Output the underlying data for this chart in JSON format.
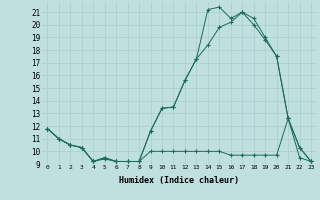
{
  "xlabel": "Humidex (Indice chaleur)",
  "bg_color": "#c0e0e0",
  "line_color": "#1a6b5a",
  "xlim": [
    -0.5,
    23.5
  ],
  "ylim": [
    9,
    21.8
  ],
  "xticks": [
    0,
    1,
    2,
    3,
    4,
    5,
    6,
    7,
    8,
    9,
    10,
    11,
    12,
    13,
    14,
    15,
    16,
    17,
    18,
    19,
    20,
    21,
    22,
    23
  ],
  "yticks": [
    9,
    10,
    11,
    12,
    13,
    14,
    15,
    16,
    17,
    18,
    19,
    20,
    21
  ],
  "line1_x": [
    0,
    1,
    2,
    3,
    4,
    5,
    6,
    7,
    8,
    9,
    10,
    11,
    12,
    13,
    14,
    15,
    16,
    17,
    18,
    19,
    20,
    21,
    22,
    23
  ],
  "line1_y": [
    11.8,
    11.0,
    10.5,
    10.3,
    9.2,
    9.4,
    9.2,
    9.2,
    9.2,
    10.0,
    10.0,
    10.0,
    10.0,
    10.0,
    10.0,
    10.0,
    9.7,
    9.7,
    9.7,
    9.7,
    9.7,
    12.6,
    9.5,
    9.2
  ],
  "line2_x": [
    0,
    1,
    2,
    3,
    4,
    5,
    6,
    7,
    8,
    9,
    10,
    11,
    12,
    13,
    14,
    15,
    16,
    17,
    18,
    19,
    20,
    21,
    22,
    23
  ],
  "line2_y": [
    11.8,
    11.0,
    10.5,
    10.3,
    9.2,
    9.5,
    9.2,
    9.2,
    9.2,
    11.6,
    13.4,
    13.5,
    15.6,
    17.3,
    18.4,
    19.8,
    20.2,
    21.0,
    20.5,
    19.0,
    17.5,
    12.6,
    10.3,
    9.2
  ],
  "line3_x": [
    0,
    1,
    2,
    3,
    4,
    5,
    6,
    7,
    8,
    9,
    10,
    11,
    12,
    13,
    14,
    15,
    16,
    17,
    18,
    19,
    20,
    21,
    22,
    23
  ],
  "line3_y": [
    11.8,
    11.0,
    10.5,
    10.3,
    9.2,
    9.5,
    9.2,
    9.2,
    9.2,
    11.6,
    13.4,
    13.5,
    15.6,
    17.3,
    21.2,
    21.4,
    20.5,
    21.0,
    20.0,
    18.8,
    17.5,
    12.6,
    10.3,
    9.2
  ]
}
